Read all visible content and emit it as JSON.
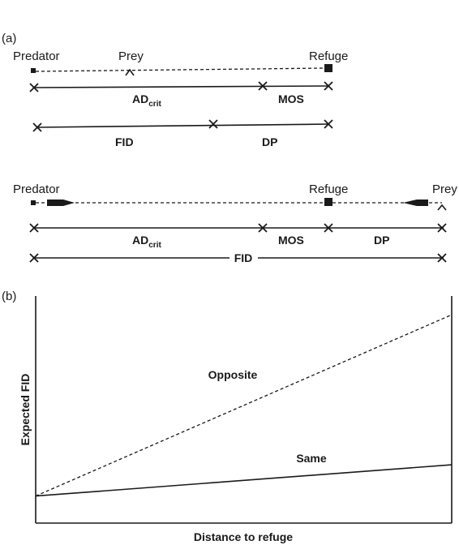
{
  "panel_a": {
    "label": "(a)",
    "scenario_same": {
      "predator": "Predator",
      "prey": "Prey",
      "refuge": "Refuge",
      "ad": "AD",
      "ad_sub": "crit",
      "mos": "MOS",
      "fid": "FID",
      "dp": "DP"
    },
    "scenario_opposite": {
      "predator": "Predator",
      "refuge": "Refuge",
      "prey": "Prey",
      "ad": "AD",
      "ad_sub": "crit",
      "mos": "MOS",
      "dp": "DP",
      "fid": "FID"
    }
  },
  "panel_b": {
    "label": "(b)",
    "chart_data": {
      "type": "line",
      "xlabel": "Distance to refuge",
      "ylabel": "Expected FID",
      "series": [
        {
          "name": "Opposite",
          "style": "dashed",
          "x": [
            0,
            1
          ],
          "y": [
            0.13,
            1.0
          ]
        },
        {
          "name": "Same",
          "style": "solid",
          "x": [
            0,
            1
          ],
          "y": [
            0.13,
            0.28
          ]
        }
      ],
      "xlim": [
        0,
        1
      ],
      "ylim": [
        0,
        1.09
      ]
    }
  }
}
